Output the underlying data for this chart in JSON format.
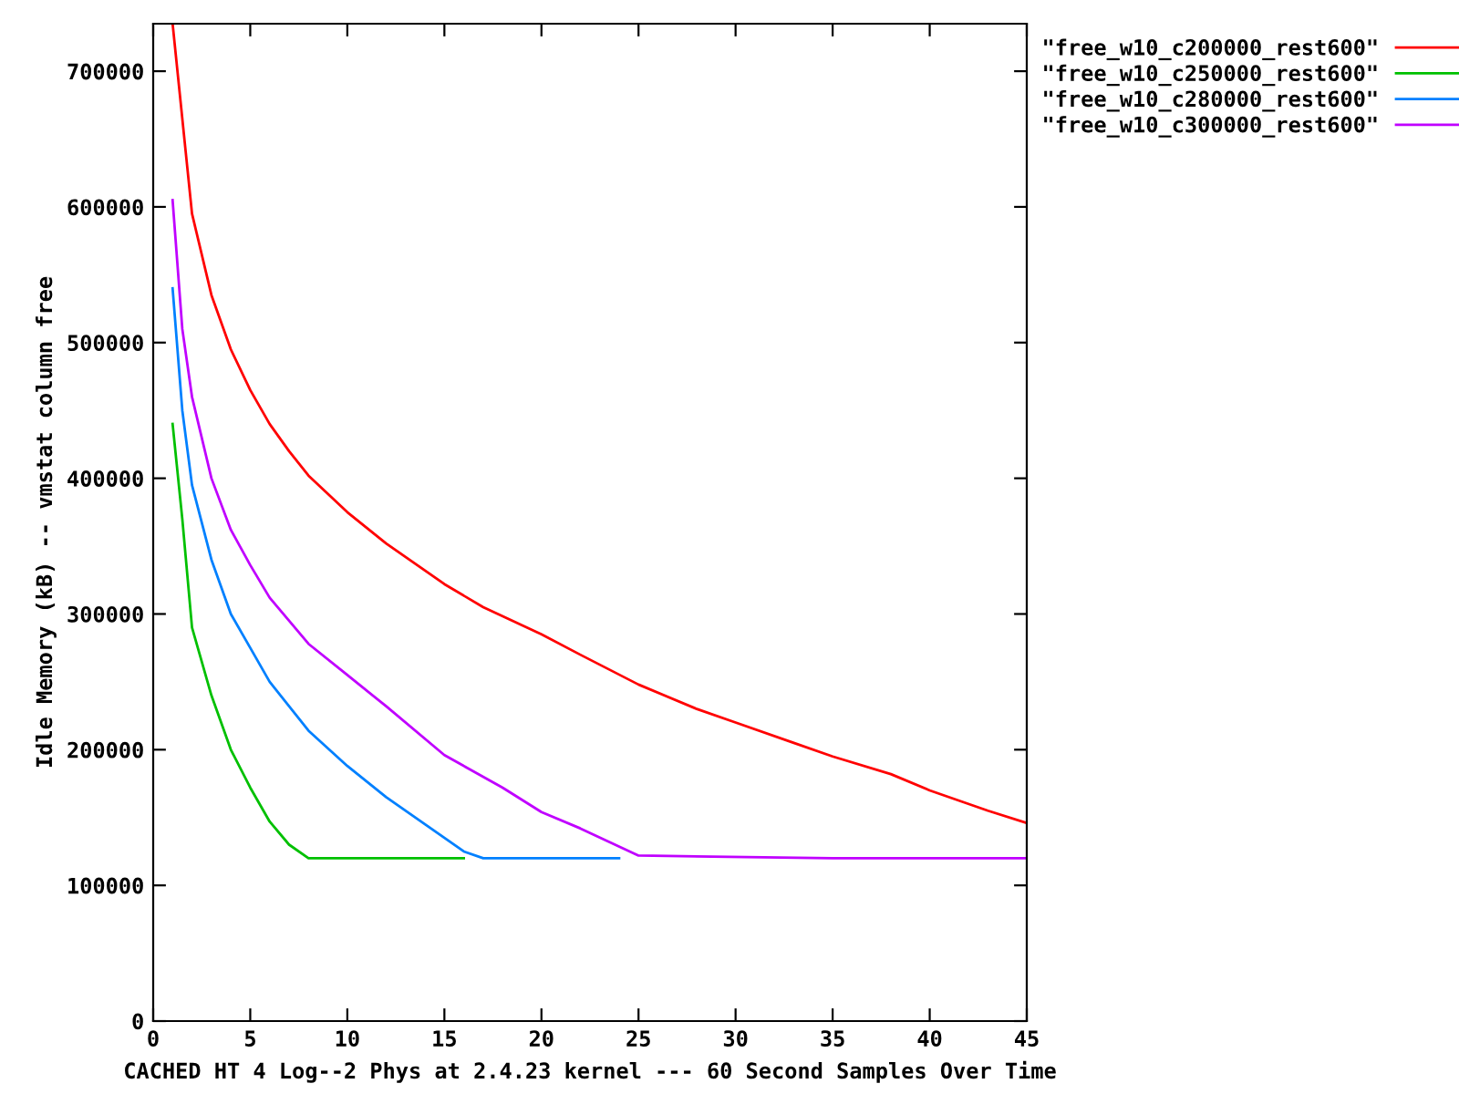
{
  "chart_data": {
    "type": "line",
    "xlabel": "CACHED HT 4 Log--2 Phys at 2.4.23 kernel --- 60 Second Samples Over Time",
    "ylabel": "Idle Memory (kB) -- vmstat column free",
    "xlim": [
      0,
      45
    ],
    "ylim": [
      0,
      735000
    ],
    "xticks": [
      0,
      5,
      10,
      15,
      20,
      25,
      30,
      35,
      40,
      45
    ],
    "yticks": [
      0,
      100000,
      200000,
      300000,
      400000,
      500000,
      600000,
      700000
    ],
    "grid": false,
    "legend": "top right",
    "marker": "none",
    "line_style": "solid",
    "series": [
      {
        "name": "\"free_w10_c200000_rest600\"",
        "color": "#ff0000",
        "x": [
          1,
          2,
          3,
          4,
          5,
          6,
          7,
          8,
          10,
          12,
          15,
          17,
          20,
          22,
          25,
          28,
          30,
          33,
          35,
          38,
          40,
          43,
          45
        ],
        "values": [
          735000,
          595000,
          535000,
          495000,
          465000,
          440000,
          420000,
          402000,
          375000,
          352000,
          322000,
          305000,
          285000,
          270000,
          248000,
          230000,
          220000,
          205000,
          195000,
          182000,
          170000,
          155000,
          146000
        ]
      },
      {
        "name": "\"free_w10_c250000_rest600\"",
        "color": "#00c000",
        "x": [
          1,
          1.5,
          2,
          3,
          4,
          5,
          6,
          7,
          8,
          16
        ],
        "values": [
          440000,
          370000,
          290000,
          240000,
          200000,
          172000,
          147000,
          130000,
          120000,
          120000
        ]
      },
      {
        "name": "\"free_w10_c280000_rest600\"",
        "color": "#0080ff",
        "x": [
          1,
          1.5,
          2,
          3,
          4,
          5,
          6,
          8,
          10,
          12,
          14,
          16,
          17,
          24
        ],
        "values": [
          540000,
          450000,
          395000,
          340000,
          300000,
          275000,
          250000,
          214000,
          188000,
          165000,
          145000,
          125000,
          120000,
          120000
        ]
      },
      {
        "name": "\"free_w10_c300000_rest600\"",
        "color": "#c000ff",
        "x": [
          1,
          1.5,
          2,
          3,
          4,
          5,
          6,
          8,
          10,
          12,
          15,
          18,
          20,
          22,
          25,
          35,
          45
        ],
        "values": [
          605000,
          510000,
          460000,
          400000,
          362000,
          336000,
          312000,
          278000,
          255000,
          232000,
          196000,
          172000,
          154000,
          142000,
          122000,
          120000,
          120000
        ]
      }
    ]
  }
}
